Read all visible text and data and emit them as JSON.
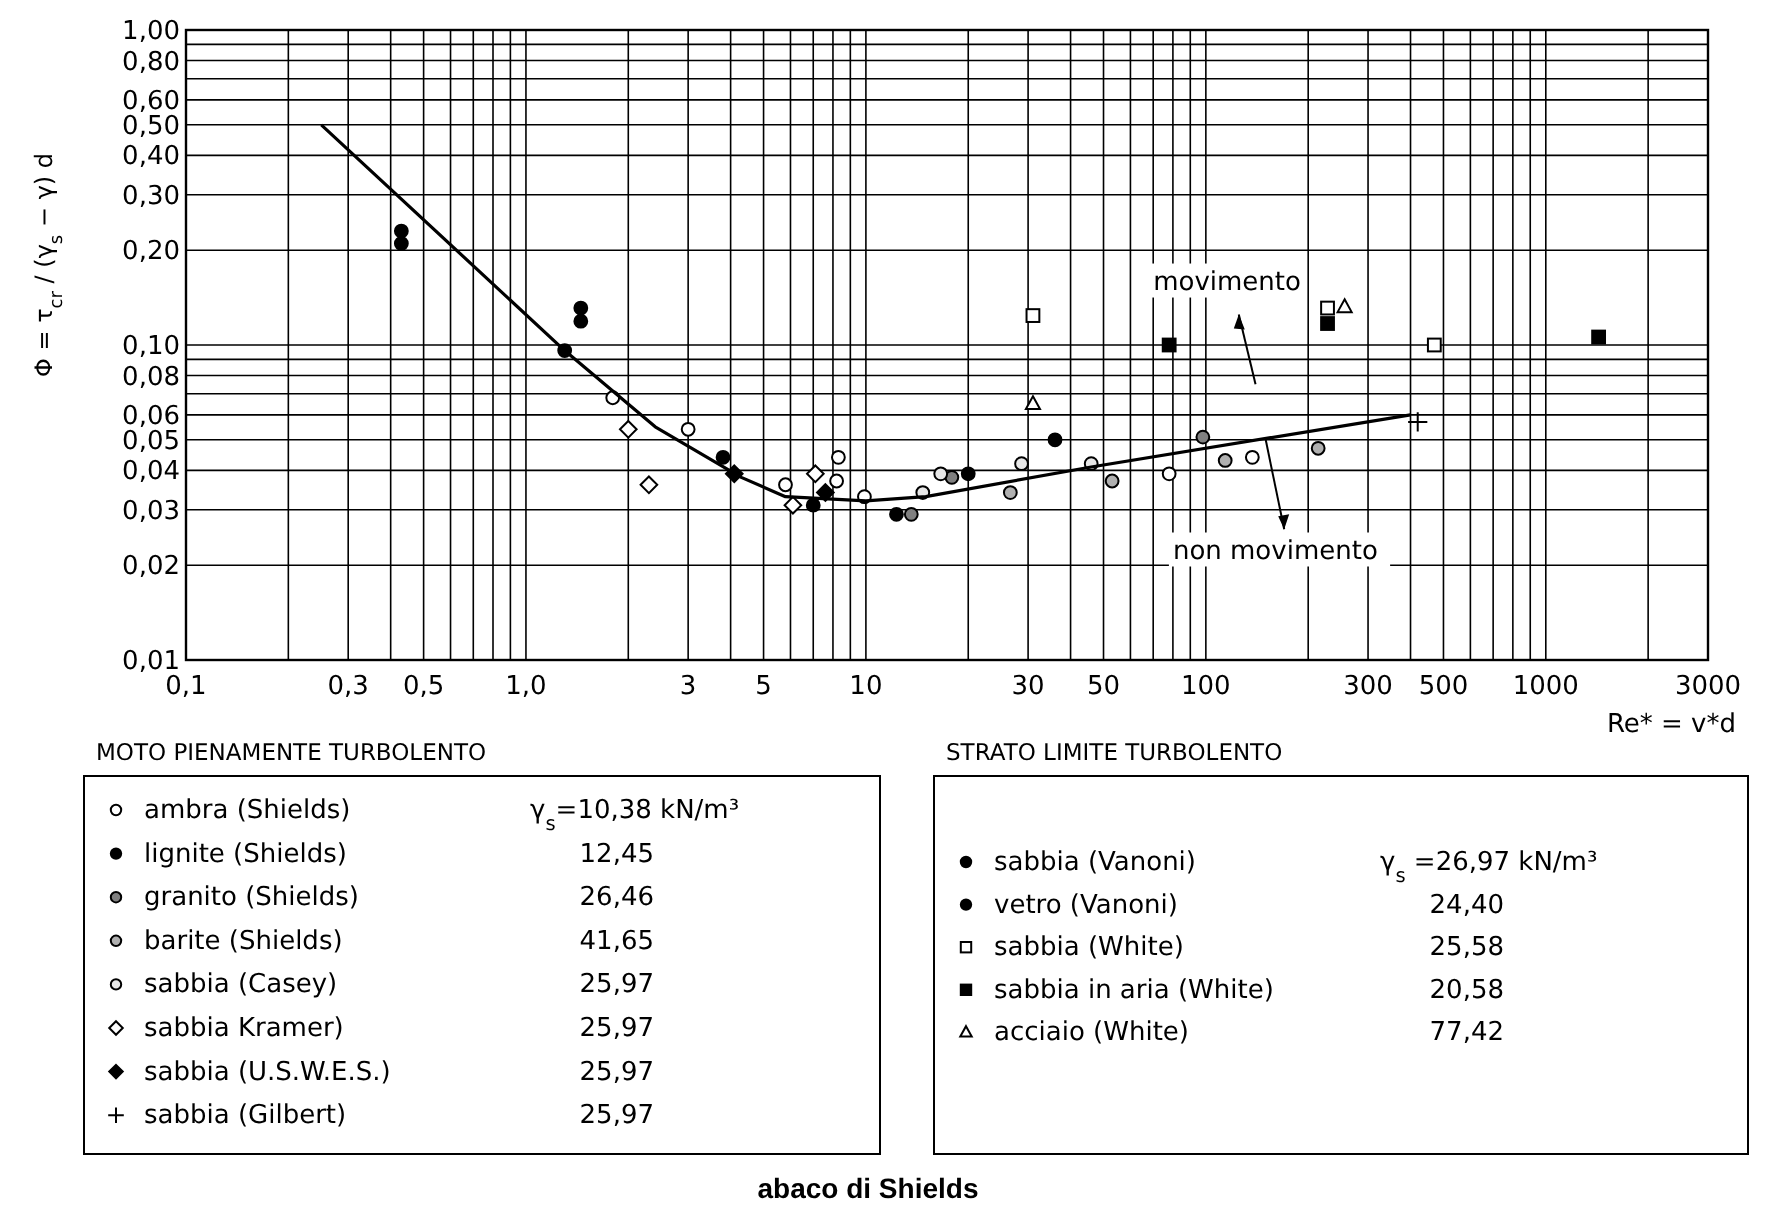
{
  "chart_data": {
    "type": "scatter",
    "title": "abaco di Shields",
    "xlabel": "Re* = v*d",
    "ylabel": "Φ = τ$_{cr}$ / (γ$_{s}$ − γ) d",
    "log": "xy",
    "grid": true,
    "legend": "bottom",
    "xlim": [
      0.1,
      3000
    ],
    "ylim": [
      0.01,
      1
    ],
    "xticks": [
      {
        "value": 0.1,
        "label": "0,1"
      },
      {
        "value": 0.2,
        "label": null
      },
      {
        "value": 0.3,
        "label": "0,3"
      },
      {
        "value": 0.4,
        "label": null
      },
      {
        "value": 0.5,
        "label": "0,5"
      },
      {
        "value": 0.6,
        "label": null
      },
      {
        "value": 0.7,
        "label": null
      },
      {
        "value": 0.8,
        "label": null
      },
      {
        "value": 0.9,
        "label": null
      },
      {
        "value": 1,
        "label": "1,0"
      },
      {
        "value": 2,
        "label": null
      },
      3,
      {
        "value": 4,
        "label": null
      },
      5,
      {
        "value": 6,
        "label": null
      },
      {
        "value": 7,
        "label": null
      },
      {
        "value": 8,
        "label": null
      },
      {
        "value": 9,
        "label": null
      },
      10,
      {
        "value": 20,
        "label": null
      },
      30,
      {
        "value": 40,
        "label": null
      },
      50,
      {
        "value": 60,
        "label": null
      },
      {
        "value": 70,
        "label": null
      },
      {
        "value": 80,
        "label": null
      },
      {
        "value": 90,
        "label": null
      },
      100,
      {
        "value": 200,
        "label": null
      },
      300,
      {
        "value": 400,
        "label": null
      },
      500,
      {
        "value": 600,
        "label": null
      },
      {
        "value": 700,
        "label": null
      },
      {
        "value": 800,
        "label": null
      },
      {
        "value": 900,
        "label": null
      },
      1000,
      {
        "value": 2000,
        "label": null
      },
      3000
    ],
    "yticks": [
      {
        "value": 0.01,
        "label": "0,01"
      },
      {
        "value": 0.02,
        "label": "0,02"
      },
      {
        "value": 0.03,
        "label": "0,03"
      },
      {
        "value": 0.04,
        "label": "0,04"
      },
      {
        "value": 0.05,
        "label": "0,05"
      },
      {
        "value": 0.06,
        "label": "0,06"
      },
      {
        "value": 0.07,
        "label": null
      },
      {
        "value": 0.08,
        "label": "0,08"
      },
      {
        "value": 0.09,
        "label": null
      },
      {
        "value": 0.1,
        "label": "0,10"
      },
      {
        "value": 0.2,
        "label": "0,20"
      },
      {
        "value": 0.3,
        "label": "0,30"
      },
      {
        "value": 0.4,
        "label": "0,40"
      },
      {
        "value": 0.5,
        "label": "0,50"
      },
      {
        "value": 0.6,
        "label": "0,60"
      },
      {
        "value": 0.7,
        "label": null
      },
      {
        "value": 0.8,
        "label": "0,80"
      },
      {
        "value": 0.9,
        "label": null
      },
      {
        "value": 1,
        "label": "1,00"
      }
    ],
    "annotations": [
      "MOTO PIENAMENTE TURBOLENTO",
      "STRATO LIMITE TURBOLENTO",
      "movimento",
      {
        "text": "non movimento",
        "x": 150,
        "y": 0.05
      },
      "γ$_{s}$=10,38 kN/m³",
      "12,45",
      "26,46",
      "41,65",
      "25,97",
      "25,97",
      "25,97",
      "25,97",
      "γ$_{s}$ =26,97 kN/m³",
      "24,40",
      "25,58",
      "20,58",
      "77,42"
    ],
    "series": [
      {
        "name": "ambra (Shields)",
        "marker": "circle",
        "color": "#ffffff",
        "x": [
          1.8,
          3,
          5.8,
          8.3,
          8.2,
          9.9,
          78,
          137
        ],
        "values": [
          0.068,
          0.054,
          0.036,
          0.044,
          0.037,
          0.033,
          0.039,
          0.044
        ]
      },
      {
        "name": "lignite (Shields)",
        "marker": "circle",
        "color": "#000000",
        "x": [
          3.8,
          7,
          12.3,
          20
        ],
        "values": [
          0.044,
          0.031,
          0.029,
          0.039
        ]
      },
      {
        "name": "granito (Shields)",
        "marker": "circle",
        "color": "#808080",
        "x": [
          13.6,
          17.9,
          98
        ],
        "values": [
          0.029,
          0.038,
          0.051
        ]
      },
      {
        "name": "barite (Shields)",
        "marker": "circle",
        "color": "#b0b0b0",
        "x": [
          26.6,
          53,
          114,
          214
        ],
        "values": [
          0.034,
          0.037,
          0.043,
          0.047
        ]
      },
      {
        "name": "sabbia (Casey)",
        "marker": "circle",
        "color": "#e8e8e8",
        "x": [
          14.7,
          16.6,
          28.7,
          46
        ],
        "values": [
          0.034,
          0.039,
          0.042,
          0.042
        ]
      },
      {
        "name": "sabbia Kramer)",
        "marker": "diamond",
        "color": "#ffffff",
        "x": [
          2,
          2.3,
          6.1,
          7.1
        ],
        "values": [
          0.054,
          0.036,
          0.031,
          0.039
        ]
      },
      {
        "name": "sabbia (U.S.W.E.S.)",
        "marker": "diamond",
        "color": "#000000",
        "x": [
          4.1,
          7.6
        ],
        "values": [
          0.039,
          0.034
        ]
      },
      {
        "name": "sabbia (Gilbert)",
        "marker": "cross",
        "color": "#000000",
        "x": [
          420
        ],
        "values": [
          0.057
        ]
      },
      {
        "name": "sabbia (Vanoni)",
        "marker": "circle",
        "color": "#000000",
        "x": [
          1.3,
          1.45,
          1.45,
          36
        ],
        "values": [
          0.096,
          0.131,
          0.119,
          0.05
        ]
      },
      {
        "name": "vetro (Vanoni)",
        "marker": "circle",
        "color": "#000000",
        "x": [
          0.43,
          0.43
        ],
        "values": [
          0.23,
          0.21
        ]
      },
      {
        "name": "sabbia (White)",
        "marker": "square",
        "color": "#ffffff",
        "x": [
          31,
          228,
          470
        ],
        "values": [
          0.124,
          0.131,
          0.1
        ]
      },
      {
        "name": "sabbia in aria (White)",
        "marker": "square",
        "color": "#000000",
        "x": [
          78,
          228,
          1430
        ],
        "values": [
          0.1,
          0.117,
          0.106
        ]
      },
      {
        "name": "acciaio (White)",
        "marker": "triangle",
        "color": "#ffffff",
        "x": [
          31,
          256
        ],
        "values": [
          0.065,
          0.132
        ]
      },
      {
        "type": "line",
        "marker": "none",
        "line_style": "solid",
        "color": "#000000",
        "x": [
          0.25,
          1.3,
          2.4,
          4.3,
          5.8,
          10,
          15,
          46,
          400
        ],
        "values": [
          0.5,
          0.096,
          0.055,
          0.038,
          0.033,
          0.032,
          0.033,
          0.041,
          0.06
        ]
      }
    ]
  }
}
